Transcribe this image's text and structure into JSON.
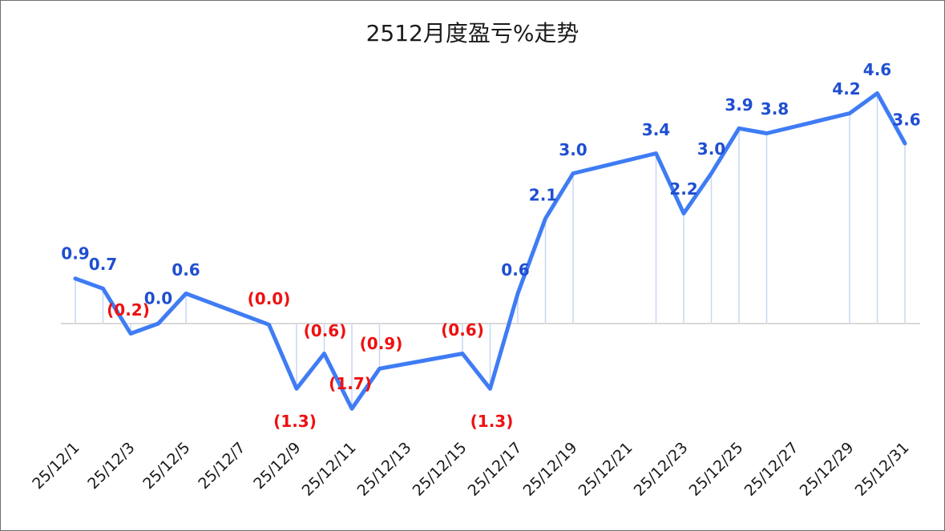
{
  "chart_data": {
    "type": "line",
    "title": "2512月度盈亏%走势",
    "xlabel": "",
    "ylabel": "",
    "x": [
      "25/12/1",
      "25/12/2",
      "25/12/3",
      "25/12/4",
      "25/12/5",
      "25/12/8",
      "25/12/9",
      "25/12/10",
      "25/12/11",
      "25/12/12",
      "25/12/15",
      "25/12/16",
      "25/12/17",
      "25/12/18",
      "25/12/19",
      "25/12/22",
      "25/12/23",
      "25/12/24",
      "25/12/25",
      "25/12/26",
      "25/12/29",
      "25/12/30",
      "25/12/31"
    ],
    "tick_labels": [
      "25/12/1",
      "25/12/3",
      "25/12/5",
      "25/12/7",
      "25/12/9",
      "25/12/11",
      "25/12/13",
      "25/12/15",
      "25/12/17",
      "25/12/19",
      "25/12/21",
      "25/12/23",
      "25/12/25",
      "25/12/27",
      "25/12/29",
      "25/12/31"
    ],
    "series": [
      {
        "values": [
          0.9,
          0.7,
          -0.2,
          0.0,
          0.6,
          -0.02,
          -1.3,
          -0.6,
          -1.7,
          -0.9,
          -0.6,
          -1.3,
          0.6,
          2.1,
          3.0,
          3.4,
          2.2,
          3.0,
          3.9,
          3.8,
          4.2,
          4.6,
          3.6
        ],
        "labels": [
          "0.9",
          "0.7",
          "(0.2)",
          "0.0",
          "0.6",
          "(0.0)",
          "(1.3)",
          "(0.6)",
          "(1.7)",
          "(0.9)",
          "(0.6)",
          "(1.3)",
          "0.6",
          "2.1",
          "3.0",
          "3.4",
          "2.2",
          "3.0",
          "3.9",
          "3.8",
          "4.2",
          "4.6",
          "3.6"
        ]
      }
    ],
    "ylim": [
      -3.2,
      5.6
    ],
    "grid": false,
    "legend": "none",
    "colors": {
      "line": "#3f7cf4",
      "positive_label": "#1f4fd1",
      "negative_label": "#ee1111",
      "drop_line": "#c9d7f5",
      "zero_axis": "#d9d9d9"
    }
  }
}
